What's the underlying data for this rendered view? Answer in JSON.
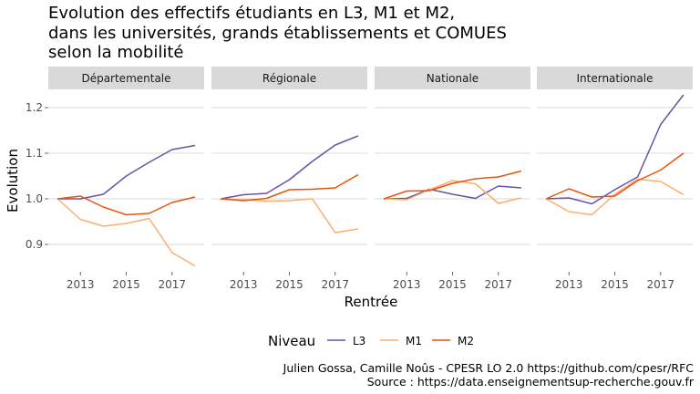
{
  "title_lines": [
    "Evolution des effectifs étudiants en L3, M1 et M2,",
    "dans les universités, grands établissements et COMUES",
    "selon la mobilité"
  ],
  "caption": {
    "line1": "Julien Gossa, Camille Noûs - CPESR LO 2.0 https://github.com/cpesr/RFC",
    "line2": "Source : https://data.enseignementsup-recherche.gouv.fr"
  },
  "colors": {
    "L3": "#6a51a3",
    "M1": "#fdae6b",
    "M2": "#e6550d",
    "strip_bg": "#d9d9d9",
    "grid": "#d9d9d9"
  },
  "chart_data": {
    "type": "line",
    "xlabel": "Rentrée",
    "ylabel": "Evolution",
    "xlim": [
      2011.6,
      2018.4
    ],
    "ylim": [
      0.84,
      1.24
    ],
    "x_ticks": [
      2013,
      2015,
      2017
    ],
    "y_ticks": [
      0.9,
      1.0,
      1.1,
      1.2
    ],
    "y_tick_labels": [
      "0.9",
      "1.0",
      "1.1",
      "1.2"
    ],
    "x": [
      2012,
      2013,
      2014,
      2015,
      2016,
      2017,
      2018
    ],
    "legend": {
      "title": "Niveau",
      "position": "bottom",
      "entries": [
        "L3",
        "M1",
        "M2"
      ]
    },
    "panels": [
      {
        "name": "Départementale",
        "series": [
          {
            "name": "L3",
            "values": [
              1.0,
              1.0,
              1.01,
              1.05,
              1.08,
              1.108,
              1.117
            ]
          },
          {
            "name": "M1",
            "values": [
              1.0,
              0.955,
              0.94,
              0.946,
              0.957,
              0.882,
              0.853
            ]
          },
          {
            "name": "M2",
            "values": [
              1.0,
              1.006,
              0.982,
              0.965,
              0.968,
              0.992,
              1.004
            ]
          }
        ]
      },
      {
        "name": "Régionale",
        "series": [
          {
            "name": "L3",
            "values": [
              1.0,
              1.009,
              1.012,
              1.042,
              1.082,
              1.118,
              1.138
            ]
          },
          {
            "name": "M1",
            "values": [
              1.0,
              0.998,
              0.995,
              0.996,
              1.0,
              0.926,
              0.934
            ]
          },
          {
            "name": "M2",
            "values": [
              1.0,
              0.996,
              1.001,
              1.02,
              1.021,
              1.024,
              1.053
            ]
          }
        ]
      },
      {
        "name": "Nationale",
        "series": [
          {
            "name": "L3",
            "values": [
              1.0,
              1.001,
              1.021,
              1.01,
              1.001,
              1.028,
              1.024
            ]
          },
          {
            "name": "M1",
            "values": [
              1.0,
              0.998,
              1.02,
              1.04,
              1.033,
              0.99,
              1.002
            ]
          },
          {
            "name": "M2",
            "values": [
              1.0,
              1.017,
              1.018,
              1.034,
              1.044,
              1.048,
              1.061
            ]
          }
        ]
      },
      {
        "name": "Internationale",
        "series": [
          {
            "name": "L3",
            "values": [
              1.0,
              1.002,
              0.989,
              1.02,
              1.048,
              1.163,
              1.228
            ]
          },
          {
            "name": "M1",
            "values": [
              1.0,
              0.972,
              0.965,
              1.01,
              1.043,
              1.038,
              1.009
            ]
          },
          {
            "name": "M2",
            "values": [
              1.0,
              1.022,
              1.004,
              1.006,
              1.04,
              1.063,
              1.1
            ]
          }
        ]
      }
    ]
  }
}
